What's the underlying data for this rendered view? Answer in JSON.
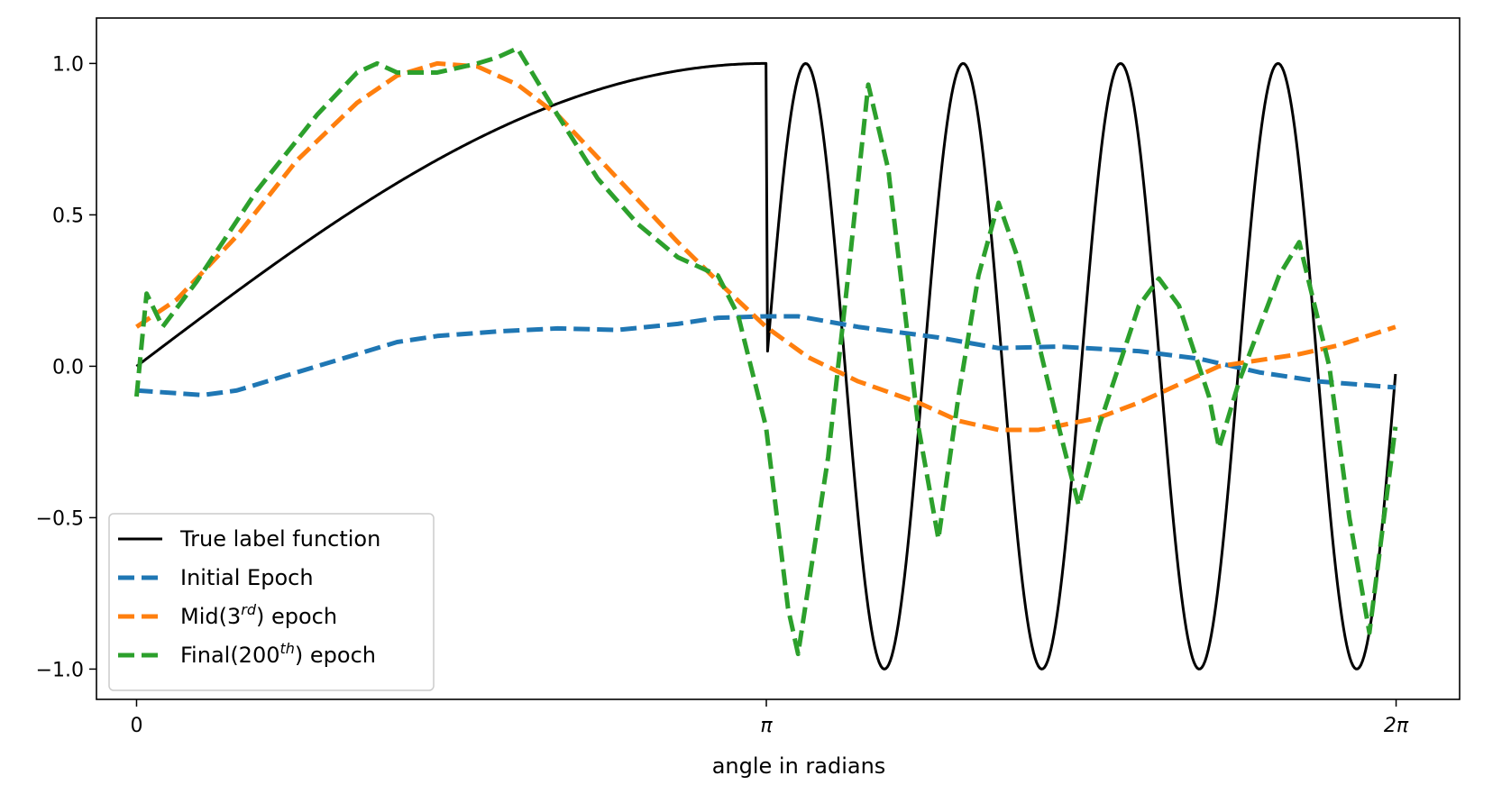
{
  "chart_data": {
    "type": "line",
    "title": "",
    "xlabel": "angle in radians",
    "ylabel": "",
    "xlim": [
      -0.2,
      6.6
    ],
    "ylim": [
      -1.1,
      1.15
    ],
    "x_ticks": [
      {
        "value": 0,
        "label": "0"
      },
      {
        "value": 3.14159,
        "label": "π"
      },
      {
        "value": 6.28318,
        "label": "2π"
      }
    ],
    "y_ticks": [
      {
        "value": -1.0,
        "label": "−1.0"
      },
      {
        "value": -0.5,
        "label": "−0.5"
      },
      {
        "value": 0.0,
        "label": "0.0"
      },
      {
        "value": 0.5,
        "label": "0.5"
      },
      {
        "value": 1.0,
        "label": "1.0"
      }
    ],
    "grid": false,
    "legend_position": "lower-left",
    "legend": [
      {
        "name": "True label function",
        "base": "True label function",
        "sup": "",
        "suffix": "",
        "color": "#000000",
        "dash": "solid"
      },
      {
        "name": "Initial Epoch",
        "base": "Initial Epoch",
        "sup": "",
        "suffix": "",
        "color": "#1f77b4",
        "dash": "dashed"
      },
      {
        "name": "Mid(3rd) epoch",
        "base": "Mid(3",
        "sup": "rd",
        "suffix": ") epoch",
        "color": "#ff7f0e",
        "dash": "dashed"
      },
      {
        "name": "Final(200th) epoch",
        "base": "Final(200",
        "sup": "th",
        "suffix": ") epoch",
        "color": "#2ca02c",
        "dash": "dashed"
      }
    ],
    "series": [
      {
        "name": "True label function",
        "color": "#000000",
        "dash": "solid",
        "function": "sin(x/2) for x<=π; sin(8x) for x>π",
        "x_range": [
          0,
          6.28
        ],
        "samples": 800
      },
      {
        "name": "Initial Epoch",
        "color": "#1f77b4",
        "dash": "dashed",
        "points": [
          [
            0,
            -0.08
          ],
          [
            0.33,
            -0.095
          ],
          [
            0.5,
            -0.08
          ],
          [
            0.8,
            -0.02
          ],
          [
            1.1,
            0.04
          ],
          [
            1.3,
            0.08
          ],
          [
            1.5,
            0.1
          ],
          [
            1.8,
            0.115
          ],
          [
            2.1,
            0.125
          ],
          [
            2.4,
            0.12
          ],
          [
            2.7,
            0.14
          ],
          [
            2.9,
            0.16
          ],
          [
            3.14,
            0.165
          ],
          [
            3.3,
            0.165
          ],
          [
            3.6,
            0.13
          ],
          [
            4.0,
            0.095
          ],
          [
            4.3,
            0.06
          ],
          [
            4.6,
            0.065
          ],
          [
            5.0,
            0.05
          ],
          [
            5.3,
            0.025
          ],
          [
            5.6,
            -0.02
          ],
          [
            5.9,
            -0.05
          ],
          [
            6.28,
            -0.07
          ]
        ]
      },
      {
        "name": "Mid(3rd) epoch",
        "color": "#ff7f0e",
        "dash": "dashed",
        "points": [
          [
            0,
            0.13
          ],
          [
            0.2,
            0.22
          ],
          [
            0.5,
            0.43
          ],
          [
            0.8,
            0.68
          ],
          [
            1.1,
            0.87
          ],
          [
            1.3,
            0.96
          ],
          [
            1.5,
            1.0
          ],
          [
            1.7,
            0.99
          ],
          [
            1.9,
            0.93
          ],
          [
            2.1,
            0.83
          ],
          [
            2.3,
            0.69
          ],
          [
            2.5,
            0.55
          ],
          [
            2.7,
            0.41
          ],
          [
            2.9,
            0.28
          ],
          [
            3.14,
            0.13
          ],
          [
            3.35,
            0.03
          ],
          [
            3.6,
            -0.05
          ],
          [
            3.9,
            -0.12
          ],
          [
            4.1,
            -0.18
          ],
          [
            4.3,
            -0.21
          ],
          [
            4.5,
            -0.21
          ],
          [
            4.8,
            -0.17
          ],
          [
            5.0,
            -0.12
          ],
          [
            5.2,
            -0.06
          ],
          [
            5.4,
            0.0
          ],
          [
            5.6,
            0.02
          ],
          [
            5.8,
            0.04
          ],
          [
            6.0,
            0.07
          ],
          [
            6.28,
            0.13
          ]
        ]
      },
      {
        "name": "Final(200th) epoch",
        "color": "#2ca02c",
        "dash": "dashed",
        "points": [
          [
            0,
            -0.1
          ],
          [
            0.05,
            0.24
          ],
          [
            0.13,
            0.13
          ],
          [
            0.3,
            0.28
          ],
          [
            0.6,
            0.58
          ],
          [
            0.9,
            0.83
          ],
          [
            1.1,
            0.97
          ],
          [
            1.2,
            1.0
          ],
          [
            1.3,
            0.97
          ],
          [
            1.5,
            0.97
          ],
          [
            1.7,
            1.0
          ],
          [
            1.8,
            1.02
          ],
          [
            1.9,
            1.05
          ],
          [
            2.1,
            0.83
          ],
          [
            2.3,
            0.62
          ],
          [
            2.5,
            0.47
          ],
          [
            2.7,
            0.36
          ],
          [
            2.9,
            0.3
          ],
          [
            3.0,
            0.17
          ],
          [
            3.14,
            -0.2
          ],
          [
            3.25,
            -0.8
          ],
          [
            3.3,
            -0.95
          ],
          [
            3.45,
            -0.3
          ],
          [
            3.55,
            0.3
          ],
          [
            3.65,
            0.93
          ],
          [
            3.75,
            0.65
          ],
          [
            3.9,
            -0.2
          ],
          [
            4.0,
            -0.57
          ],
          [
            4.1,
            -0.1
          ],
          [
            4.2,
            0.3
          ],
          [
            4.3,
            0.54
          ],
          [
            4.4,
            0.35
          ],
          [
            4.6,
            -0.2
          ],
          [
            4.7,
            -0.46
          ],
          [
            4.8,
            -0.2
          ],
          [
            5.0,
            0.2
          ],
          [
            5.1,
            0.29
          ],
          [
            5.2,
            0.2
          ],
          [
            5.35,
            -0.1
          ],
          [
            5.4,
            -0.27
          ],
          [
            5.5,
            -0.05
          ],
          [
            5.7,
            0.3
          ],
          [
            5.8,
            0.41
          ],
          [
            5.95,
            0.0
          ],
          [
            6.05,
            -0.5
          ],
          [
            6.15,
            -0.88
          ],
          [
            6.28,
            -0.2
          ]
        ]
      }
    ]
  }
}
